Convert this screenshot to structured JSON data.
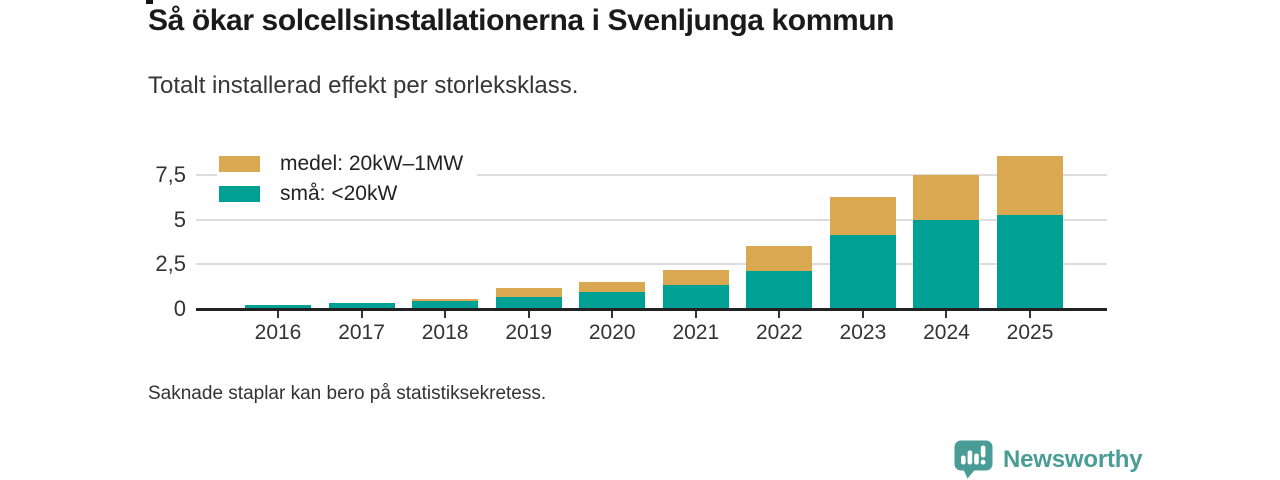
{
  "page": {
    "title": "Så ökar solcellsinstallationerna i Svenljunga kommun",
    "subtitle": "Totalt installerad effekt per storleksklass.",
    "footnote": "Saknade staplar kan bero på statistiksekretess.",
    "brand": {
      "name": "Newsworthy",
      "color": "#4a9d97",
      "icon": "bar-chart-speech-bubble-icon"
    }
  },
  "chart_data": {
    "type": "bar",
    "stacked": true,
    "title": "Så ökar solcellsinstallationerna i Svenljunga kommun",
    "subtitle": "Totalt installerad effekt per storleksklass.",
    "categories": [
      "2016",
      "2017",
      "2018",
      "2019",
      "2020",
      "2021",
      "2022",
      "2023",
      "2024",
      "2025"
    ],
    "series": [
      {
        "name": "små: <20kW",
        "color": "#00a195",
        "values": [
          0.25,
          0.35,
          0.45,
          0.65,
          0.95,
          1.35,
          2.1,
          4.15,
          5.0,
          5.25
        ]
      },
      {
        "name": "medel: 20kW–1MW",
        "color": "#d9a850",
        "values": [
          0,
          0,
          0.1,
          0.55,
          0.55,
          0.85,
          1.4,
          2.1,
          2.5,
          3.3
        ]
      }
    ],
    "totals": [
      0.25,
      0.35,
      0.55,
      1.2,
      1.5,
      2.2,
      3.5,
      6.25,
      7.5,
      8.55
    ],
    "legend": {
      "position": "top-left",
      "entries": [
        {
          "label": "medel: 20kW–1MW",
          "color": "#d9a850"
        },
        {
          "label": "små: <20kW",
          "color": "#00a195"
        }
      ]
    },
    "xlabel": "",
    "ylabel": "",
    "yticks": [
      0,
      2.5,
      5,
      7.5
    ],
    "ytick_labels": [
      "0",
      "2,5",
      "5",
      "7,5"
    ],
    "ylim": [
      0,
      9.4
    ],
    "grid": "horizontal",
    "colors": {
      "axis": "#222222",
      "gridline": "#dddddd",
      "tick_text": "#333333"
    }
  }
}
